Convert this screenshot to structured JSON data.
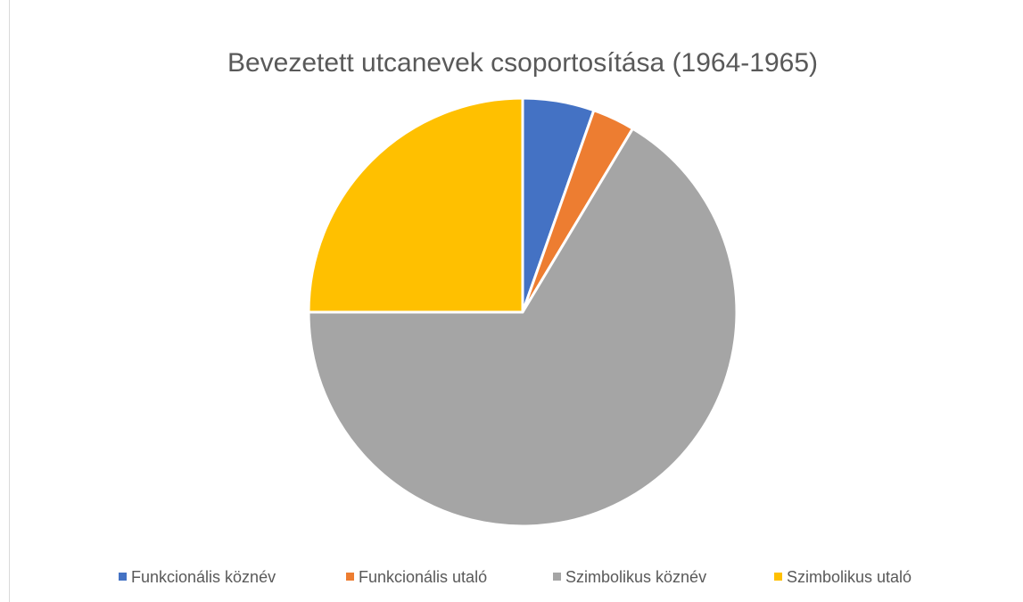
{
  "chart_data": {
    "type": "pie",
    "title": "Bevezetett utcanevek csoportosítása (1964-1965)",
    "categories": [
      "Funkcionális köznév",
      "Funkcionális utaló",
      "Szimbolikus köznév",
      "Szimbolikus utaló"
    ],
    "values": [
      5.4,
      3.2,
      66.4,
      25
    ],
    "colors": [
      "#4472c4",
      "#ed7d31",
      "#a5a5a5",
      "#ffc000"
    ],
    "legend": "bottom"
  }
}
